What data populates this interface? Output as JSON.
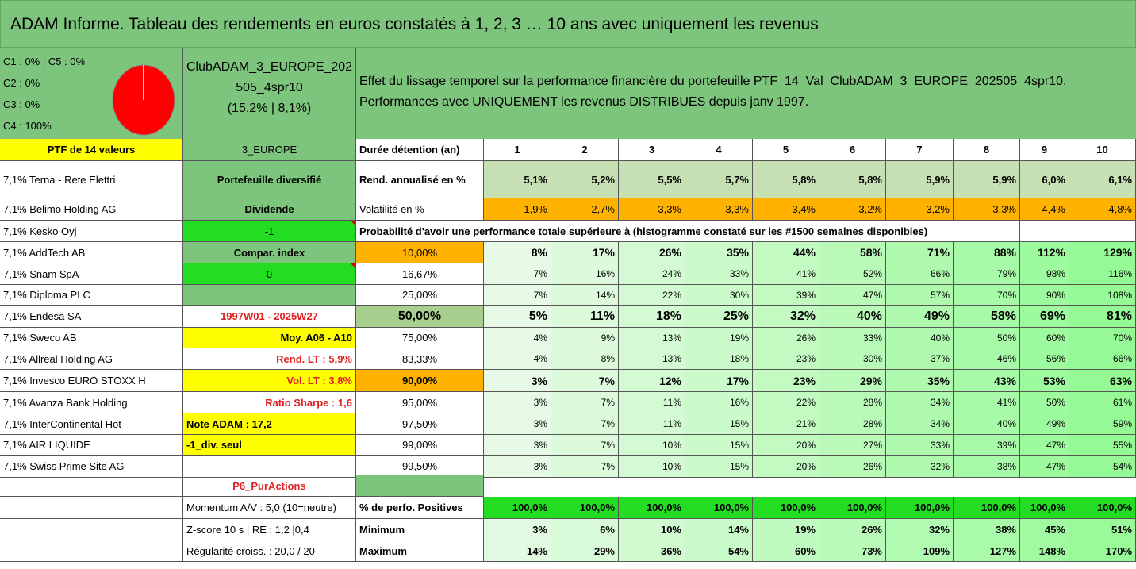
{
  "title": "ADAM Informe. Tableau des rendements en euros constatés à 1, 2, 3 … 10 ans avec uniquement les revenus",
  "legend": {
    "c1c5": "C1 : 0% | C5 : 0%",
    "c2": "C2 : 0%",
    "c3": "C3 : 0%",
    "c4": "C4 : 100%"
  },
  "club": {
    "line1": "ClubADAM_3_EUROPE_202",
    "line2": "505_4spr10",
    "line3": "(15,2% | 8,1%)"
  },
  "description": {
    "line1": "Effet du lissage temporel sur la performance financière du portefeuille PTF_14_Val_ClubADAM_3_EUROPE_202505_4spr10.",
    "line2": "Performances avec UNIQUEMENT les revenus DISTRIBUES depuis janv 1997."
  },
  "ptf_label": "PTF de 14 valeurs",
  "region": "3_EUROPE",
  "duration_label": "Durée détention (an)",
  "years": [
    "1",
    "2",
    "3",
    "4",
    "5",
    "6",
    "7",
    "8",
    "9",
    "10"
  ],
  "holdings": [
    "7,1% Terna - Rete Elettri",
    "7,1% Belimo Holding AG",
    "7,1% Kesko Oyj",
    "7,1% AddTech AB",
    "7,1% Snam SpA",
    "7,1% Diploma PLC",
    "7,1% Endesa SA",
    "7,1% Sweco AB",
    "7,1% Allreal Holding AG",
    "7,1% Invesco EURO STOXX H",
    "7,1% Avanza Bank Holding",
    "7,1% InterContinental Hot",
    "7,1% AIR LIQUIDE",
    "7,1% Swiss Prime Site AG"
  ],
  "side": {
    "diversified": "Portefeuille diversifié",
    "dividende": "Dividende",
    "minus1": "-1",
    "compar": "Compar. index",
    "zero": "0",
    "blank": "",
    "period": "1997W01 - 2025W27",
    "moy": "Moy. A06 - A10",
    "rend_lt": "Rend. LT : 5,9%",
    "vol_lt": "Vol. LT : 3,8%",
    "sharpe": "Ratio Sharpe : 1,6",
    "note": "Note ADAM : 17,2",
    "div_seul": "-1_div. seul",
    "p6": "P6_PurActions"
  },
  "rend_label": "Rend. annualisé en %",
  "rend": [
    "5,1%",
    "5,2%",
    "5,5%",
    "5,7%",
    "5,8%",
    "5,8%",
    "5,9%",
    "5,9%",
    "6,0%",
    "6,1%"
  ],
  "vol_label": "Volatilité en %",
  "vol": [
    "1,9%",
    "2,7%",
    "3,3%",
    "3,3%",
    "3,4%",
    "3,2%",
    "3,2%",
    "3,3%",
    "4,4%",
    "4,8%"
  ],
  "prob_label": "Probabilité d'avoir une performance totale supérieure à (histogramme constaté sur les #1500 semaines disponibles)",
  "prob_rows": [
    {
      "p": "10,00%",
      "v": [
        "8%",
        "17%",
        "26%",
        "35%",
        "44%",
        "58%",
        "71%",
        "88%",
        "112%",
        "129%"
      ]
    },
    {
      "p": "16,67%",
      "v": [
        "7%",
        "16%",
        "24%",
        "33%",
        "41%",
        "52%",
        "66%",
        "79%",
        "98%",
        "116%"
      ]
    },
    {
      "p": "25,00%",
      "v": [
        "7%",
        "14%",
        "22%",
        "30%",
        "39%",
        "47%",
        "57%",
        "70%",
        "90%",
        "108%"
      ]
    },
    {
      "p": "50,00%",
      "v": [
        "5%",
        "11%",
        "18%",
        "25%",
        "32%",
        "40%",
        "49%",
        "58%",
        "69%",
        "81%"
      ]
    },
    {
      "p": "75,00%",
      "v": [
        "4%",
        "9%",
        "13%",
        "19%",
        "26%",
        "33%",
        "40%",
        "50%",
        "60%",
        "70%"
      ]
    },
    {
      "p": "83,33%",
      "v": [
        "4%",
        "8%",
        "13%",
        "18%",
        "23%",
        "30%",
        "37%",
        "46%",
        "56%",
        "66%"
      ]
    },
    {
      "p": "90,00%",
      "v": [
        "3%",
        "7%",
        "12%",
        "17%",
        "23%",
        "29%",
        "35%",
        "43%",
        "53%",
        "63%"
      ]
    },
    {
      "p": "95,00%",
      "v": [
        "3%",
        "7%",
        "11%",
        "16%",
        "22%",
        "28%",
        "34%",
        "41%",
        "50%",
        "61%"
      ]
    },
    {
      "p": "97,50%",
      "v": [
        "3%",
        "7%",
        "11%",
        "15%",
        "21%",
        "28%",
        "34%",
        "40%",
        "49%",
        "59%"
      ]
    },
    {
      "p": "99,00%",
      "v": [
        "3%",
        "7%",
        "10%",
        "15%",
        "20%",
        "27%",
        "33%",
        "39%",
        "47%",
        "55%"
      ]
    },
    {
      "p": "99,50%",
      "v": [
        "3%",
        "7%",
        "10%",
        "15%",
        "20%",
        "26%",
        "32%",
        "38%",
        "47%",
        "54%"
      ]
    }
  ],
  "bottom": {
    "momentum": "Momentum A/V : 5,0 (10=neutre)",
    "zscore": "Z-score 10 s | RE : 1,2 |0,4",
    "regularite": "Régularité croiss. : 20,0 / 20",
    "pos_label": "% de perfo. Positives",
    "pos": [
      "100,0%",
      "100,0%",
      "100,0%",
      "100,0%",
      "100,0%",
      "100,0%",
      "100,0%",
      "100,0%",
      "100,0%",
      "100,0%"
    ],
    "min_label": "Minimum",
    "min": [
      "3%",
      "6%",
      "10%",
      "14%",
      "19%",
      "26%",
      "32%",
      "38%",
      "45%",
      "51%"
    ],
    "max_label": "Maximum",
    "max": [
      "14%",
      "29%",
      "36%",
      "54%",
      "60%",
      "73%",
      "109%",
      "127%",
      "148%",
      "170%"
    ]
  },
  "pie_color": "#ff0000"
}
